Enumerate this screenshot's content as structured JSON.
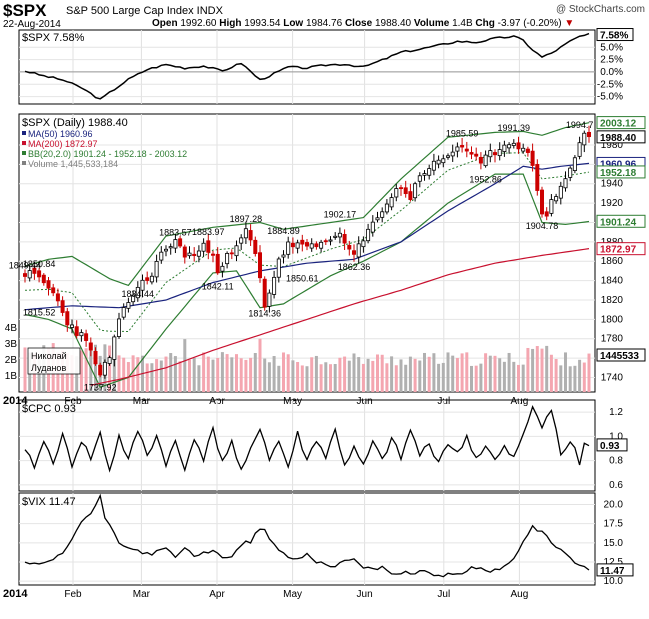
{
  "header": {
    "ticker": "$SPX",
    "name": "S&P 500 Large Cap Index INDX",
    "credit": "@ StockCharts.com",
    "date": "22-Aug-2014",
    "open_label": "Open",
    "open": "1992.60",
    "high_label": "High",
    "high": "1993.54",
    "low_label": "Low",
    "low": "1984.76",
    "close_label": "Close",
    "close": "1988.40",
    "volume_label": "Volume",
    "volume": "1.4B",
    "chg_label": "Chg",
    "chg": "-3.97 (-0.20%)",
    "chg_arrow": "▼"
  },
  "colors": {
    "ma50": "#1a237e",
    "ma200": "#c8102e",
    "bb": "#2e7d32",
    "vol_up": "#f4a6b0",
    "vol_down": "#b0b0b0",
    "candle_down": "#cc0000"
  },
  "chart_data": [
    {
      "panel": "spx-relative",
      "type": "line",
      "label": "$SPX 7.58%",
      "last_value": "7.58%",
      "yticks": [
        "5.0%",
        "2.5%",
        "0.0%",
        "-2.5%",
        "-5.0%"
      ],
      "ylim": [
        -6.5,
        8.5
      ]
    },
    {
      "panel": "price",
      "type": "candlestick",
      "title": "$SPX (Daily) 1988.40",
      "legend": [
        {
          "name": "MA(50) 1960.96",
          "color": "#1a237e"
        },
        {
          "name": "MA(200) 1872.97",
          "color": "#c8102e"
        },
        {
          "name": "BB(20,2.0) 1901.24 - 1952.18 - 2003.12",
          "color": "#2e7d32"
        },
        {
          "name": "Volume 1,445,533,184",
          "color": "#808080"
        }
      ],
      "ylim": [
        1725,
        2012
      ],
      "yticks": [
        "1740",
        "1760",
        "1780",
        "1800",
        "1820",
        "1840",
        "1860",
        "1880",
        "1900",
        "1920",
        "1940",
        "1960",
        "1980"
      ],
      "right_labels": [
        "2003.12",
        "1988.40",
        "1960.96",
        "1952.18",
        "1901.24",
        "1872.97",
        "1445533"
      ],
      "volume_ticks": [
        "4B",
        "3B",
        "2B",
        "1B"
      ],
      "annotations": [
        {
          "text": "1849.44",
          "x": 0,
          "y": 1849.44
        },
        {
          "text": "1850.84",
          "x": 3,
          "y": 1850.84
        },
        {
          "text": "1815.52",
          "x": 3,
          "y": 1815.52
        },
        {
          "text": "1737.92",
          "x": 16,
          "y": 1737.92
        },
        {
          "text": "1834.44",
          "x": 24,
          "y": 1834.44
        },
        {
          "text": "1883.57",
          "x": 32,
          "y": 1883.57
        },
        {
          "text": "1883.97",
          "x": 39,
          "y": 1883.97
        },
        {
          "text": "1842.11",
          "x": 41,
          "y": 1842.11
        },
        {
          "text": "1897.28",
          "x": 47,
          "y": 1897.28
        },
        {
          "text": "1884.89",
          "x": 55,
          "y": 1884.89
        },
        {
          "text": "1814.36",
          "x": 51,
          "y": 1814.36
        },
        {
          "text": "1850.61",
          "x": 59,
          "y": 1850.61
        },
        {
          "text": "1902.17",
          "x": 67,
          "y": 1902.17
        },
        {
          "text": "1862.36",
          "x": 70,
          "y": 1862.36
        },
        {
          "text": "1985.59",
          "x": 93,
          "y": 1985.59
        },
        {
          "text": "1952.86",
          "x": 98,
          "y": 1952.86
        },
        {
          "text": "1991.39",
          "x": 104,
          "y": 1991.39
        },
        {
          "text": "1904.78",
          "x": 110,
          "y": 1904.78
        },
        {
          "text": "1994.7",
          "x": 118,
          "y": 1994.7
        }
      ],
      "watermark": [
        "Николай",
        "Луданов"
      ],
      "ohlc_anchors": [
        [
          0,
          1848
        ],
        [
          3,
          1842
        ],
        [
          6,
          1827
        ],
        [
          9,
          1798
        ],
        [
          12,
          1783
        ],
        [
          15,
          1758
        ],
        [
          16,
          1740
        ],
        [
          17,
          1752
        ],
        [
          18,
          1762
        ],
        [
          20,
          1796
        ],
        [
          22,
          1819
        ],
        [
          24,
          1834
        ],
        [
          26,
          1840
        ],
        [
          28,
          1858
        ],
        [
          30,
          1874
        ],
        [
          32,
          1880
        ],
        [
          34,
          1868
        ],
        [
          36,
          1866
        ],
        [
          38,
          1874
        ],
        [
          40,
          1871
        ],
        [
          41,
          1852
        ],
        [
          43,
          1864
        ],
        [
          45,
          1872
        ],
        [
          47,
          1893
        ],
        [
          49,
          1866
        ],
        [
          51,
          1816
        ],
        [
          52,
          1828
        ],
        [
          54,
          1862
        ],
        [
          56,
          1876
        ],
        [
          58,
          1878
        ],
        [
          60,
          1872
        ],
        [
          62,
          1876
        ],
        [
          64,
          1880
        ],
        [
          66,
          1890
        ],
        [
          68,
          1878
        ],
        [
          70,
          1866
        ],
        [
          72,
          1881
        ],
        [
          74,
          1898
        ],
        [
          76,
          1915
        ],
        [
          78,
          1926
        ],
        [
          80,
          1938
        ],
        [
          82,
          1925
        ],
        [
          84,
          1950
        ],
        [
          86,
          1957
        ],
        [
          88,
          1962
        ],
        [
          90,
          1970
        ],
        [
          92,
          1978
        ],
        [
          93,
          1980
        ],
        [
          95,
          1967
        ],
        [
          97,
          1960
        ],
        [
          99,
          1970
        ],
        [
          101,
          1978
        ],
        [
          103,
          1982
        ],
        [
          104,
          1986
        ],
        [
          106,
          1974
        ],
        [
          108,
          1962
        ],
        [
          109,
          1930
        ],
        [
          110,
          1912
        ],
        [
          111,
          1910
        ],
        [
          112,
          1920
        ],
        [
          114,
          1938
        ],
        [
          116,
          1955
        ],
        [
          118,
          1980
        ],
        [
          119,
          1991
        ],
        [
          120,
          1988
        ]
      ],
      "ma50_anchors": [
        [
          0,
          1810
        ],
        [
          10,
          1814
        ],
        [
          20,
          1812
        ],
        [
          30,
          1820
        ],
        [
          40,
          1838
        ],
        [
          50,
          1850
        ],
        [
          60,
          1858
        ],
        [
          70,
          1862
        ],
        [
          80,
          1880
        ],
        [
          90,
          1912
        ],
        [
          100,
          1940
        ],
        [
          106,
          1958
        ],
        [
          110,
          1955
        ],
        [
          114,
          1958
        ],
        [
          120,
          1961
        ]
      ],
      "ma200_anchors": [
        [
          14,
          1732
        ],
        [
          20,
          1738
        ],
        [
          30,
          1750
        ],
        [
          40,
          1768
        ],
        [
          50,
          1784
        ],
        [
          60,
          1800
        ],
        [
          70,
          1816
        ],
        [
          80,
          1830
        ],
        [
          90,
          1846
        ],
        [
          100,
          1858
        ],
        [
          110,
          1866
        ],
        [
          120,
          1873
        ]
      ],
      "bb_upper_anchors": [
        [
          0,
          1855
        ],
        [
          5,
          1862
        ],
        [
          10,
          1865
        ],
        [
          18,
          1842
        ],
        [
          22,
          1835
        ],
        [
          30,
          1886
        ],
        [
          40,
          1895
        ],
        [
          50,
          1900
        ],
        [
          55,
          1893
        ],
        [
          65,
          1900
        ],
        [
          72,
          1905
        ],
        [
          80,
          1945
        ],
        [
          90,
          1988
        ],
        [
          100,
          1993
        ],
        [
          106,
          1994
        ],
        [
          110,
          1990
        ],
        [
          115,
          1998
        ],
        [
          120,
          2003
        ]
      ],
      "bb_lower_anchors": [
        [
          0,
          1805
        ],
        [
          5,
          1800
        ],
        [
          10,
          1790
        ],
        [
          16,
          1730
        ],
        [
          22,
          1740
        ],
        [
          30,
          1790
        ],
        [
          40,
          1848
        ],
        [
          45,
          1850
        ],
        [
          50,
          1812
        ],
        [
          55,
          1816
        ],
        [
          65,
          1845
        ],
        [
          72,
          1860
        ],
        [
          80,
          1880
        ],
        [
          90,
          1920
        ],
        [
          100,
          1950
        ],
        [
          106,
          1950
        ],
        [
          110,
          1900
        ],
        [
          115,
          1898
        ],
        [
          120,
          1901
        ]
      ],
      "volume_scale_max_billions": 5
    },
    {
      "panel": "cpc",
      "type": "line",
      "label": "$CPC 0.93",
      "last_value": "0.93",
      "ylim": [
        0.55,
        1.3
      ],
      "yticks": [
        "1.2",
        "1.0",
        "0.8",
        "0.6"
      ],
      "anchors": [
        [
          0,
          0.87
        ],
        [
          2,
          0.76
        ],
        [
          4,
          0.95
        ],
        [
          6,
          0.8
        ],
        [
          8,
          1.0
        ],
        [
          10,
          0.77
        ],
        [
          12,
          0.97
        ],
        [
          14,
          0.82
        ],
        [
          16,
          1.02
        ],
        [
          18,
          0.72
        ],
        [
          20,
          1.0
        ],
        [
          22,
          0.8
        ],
        [
          24,
          1.05
        ],
        [
          26,
          0.85
        ],
        [
          28,
          1.0
        ],
        [
          30,
          0.78
        ],
        [
          32,
          0.95
        ],
        [
          34,
          0.72
        ],
        [
          36,
          1.0
        ],
        [
          38,
          0.82
        ],
        [
          40,
          1.05
        ],
        [
          42,
          0.8
        ],
        [
          44,
          0.95
        ],
        [
          46,
          0.7
        ],
        [
          48,
          0.88
        ],
        [
          50,
          1.08
        ],
        [
          52,
          0.82
        ],
        [
          54,
          0.96
        ],
        [
          56,
          0.75
        ],
        [
          58,
          1.02
        ],
        [
          60,
          0.8
        ],
        [
          62,
          0.98
        ],
        [
          64,
          0.83
        ],
        [
          66,
          1.05
        ],
        [
          68,
          0.77
        ],
        [
          70,
          0.9
        ],
        [
          72,
          0.75
        ],
        [
          74,
          0.95
        ],
        [
          76,
          0.8
        ],
        [
          78,
          0.98
        ],
        [
          80,
          0.82
        ],
        [
          82,
          1.05
        ],
        [
          84,
          0.85
        ],
        [
          86,
          0.93
        ],
        [
          88,
          0.8
        ],
        [
          90,
          0.95
        ],
        [
          92,
          0.85
        ],
        [
          94,
          1.0
        ],
        [
          96,
          0.82
        ],
        [
          98,
          0.92
        ],
        [
          100,
          0.8
        ],
        [
          102,
          0.9
        ],
        [
          104,
          0.82
        ],
        [
          106,
          1.0
        ],
        [
          108,
          1.25
        ],
        [
          110,
          1.1
        ],
        [
          112,
          1.22
        ],
        [
          114,
          0.85
        ],
        [
          116,
          0.95
        ],
        [
          117,
          0.9
        ],
        [
          118,
          0.75
        ],
        [
          119,
          0.95
        ],
        [
          120,
          0.93
        ]
      ]
    },
    {
      "panel": "vix",
      "type": "line",
      "label": "$VIX 11.47",
      "last_value": "11.47",
      "ylim": [
        9.5,
        21.5
      ],
      "yticks": [
        "20.0",
        "17.5",
        "15.0",
        "12.5",
        "10.0"
      ],
      "anchors": [
        [
          0,
          12.5
        ],
        [
          3,
          12.0
        ],
        [
          6,
          12.8
        ],
        [
          8,
          13.5
        ],
        [
          10,
          15.5
        ],
        [
          12,
          17.8
        ],
        [
          14,
          18.8
        ],
        [
          16,
          21.0
        ],
        [
          17,
          18.0
        ],
        [
          18,
          17.5
        ],
        [
          20,
          15.0
        ],
        [
          22,
          14.5
        ],
        [
          24,
          14.0
        ],
        [
          26,
          13.5
        ],
        [
          28,
          13.8
        ],
        [
          30,
          14.2
        ],
        [
          32,
          13.2
        ],
        [
          34,
          14.5
        ],
        [
          36,
          13.0
        ],
        [
          38,
          13.6
        ],
        [
          40,
          14.0
        ],
        [
          42,
          13.0
        ],
        [
          44,
          13.4
        ],
        [
          46,
          14.8
        ],
        [
          48,
          15.2
        ],
        [
          50,
          17.0
        ],
        [
          51,
          16.5
        ],
        [
          52,
          15.5
        ],
        [
          54,
          14.0
        ],
        [
          56,
          13.2
        ],
        [
          58,
          12.8
        ],
        [
          60,
          13.6
        ],
        [
          62,
          12.6
        ],
        [
          64,
          12.2
        ],
        [
          66,
          12.0
        ],
        [
          68,
          12.6
        ],
        [
          70,
          12.8
        ],
        [
          72,
          11.9
        ],
        [
          74,
          11.6
        ],
        [
          76,
          11.7
        ],
        [
          78,
          11.0
        ],
        [
          80,
          11.2
        ],
        [
          82,
          10.9
        ],
        [
          84,
          11.4
        ],
        [
          86,
          11.2
        ],
        [
          88,
          10.6
        ],
        [
          90,
          11.0
        ],
        [
          92,
          10.8
        ],
        [
          94,
          11.5
        ],
        [
          96,
          11.8
        ],
        [
          98,
          11.2
        ],
        [
          100,
          11.5
        ],
        [
          102,
          12.0
        ],
        [
          104,
          12.8
        ],
        [
          106,
          15.0
        ],
        [
          108,
          17.0
        ],
        [
          110,
          16.3
        ],
        [
          112,
          15.2
        ],
        [
          114,
          14.0
        ],
        [
          116,
          13.0
        ],
        [
          118,
          12.0
        ],
        [
          120,
          11.47
        ]
      ]
    }
  ],
  "x_axis": {
    "year": "2014",
    "months": [
      {
        "label": "Feb",
        "x": 15
      },
      {
        "label": "Mar",
        "x": 34
      },
      {
        "label": "Apr",
        "x": 55
      },
      {
        "label": "May",
        "x": 76
      },
      {
        "label": "Jun",
        "x": 96
      },
      {
        "label": "Jul",
        "x": 118
      },
      {
        "label": "Aug",
        "x": 139
      }
    ],
    "note_month_x_in_relative_units": true
  }
}
